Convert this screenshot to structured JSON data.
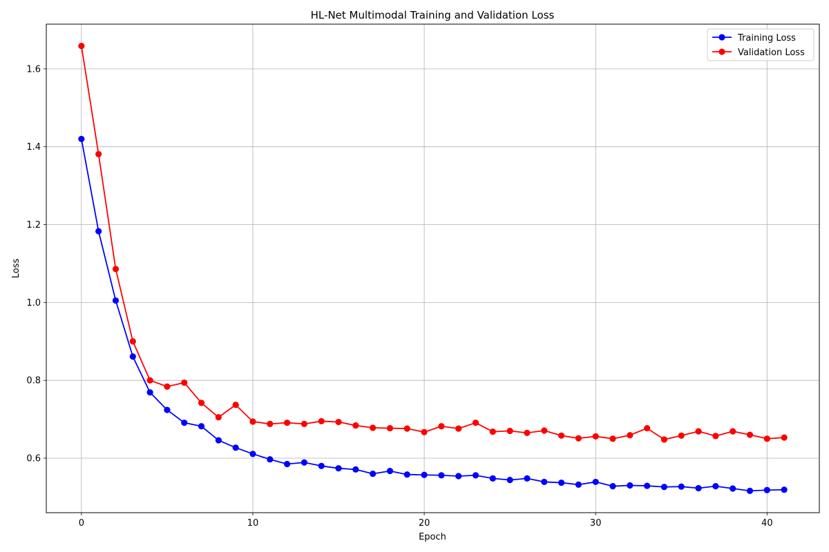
{
  "chart_data": {
    "type": "line",
    "title": "HL-Net Multimodal Training and Validation Loss",
    "xlabel": "Epoch",
    "ylabel": "Loss",
    "xlim": [
      -2.05,
      43.05
    ],
    "ylim": [
      0.46,
      1.715
    ],
    "xticks": [
      0,
      10,
      20,
      30,
      40
    ],
    "yticks": [
      0.6,
      0.8,
      1.0,
      1.2,
      1.4,
      1.6
    ],
    "ytick_labels": [
      "0.6",
      "0.8",
      "1.0",
      "1.2",
      "1.4",
      "1.6"
    ],
    "grid": true,
    "legend_position": "top-right",
    "x": [
      0,
      1,
      2,
      3,
      4,
      5,
      6,
      7,
      8,
      9,
      10,
      11,
      12,
      13,
      14,
      15,
      16,
      17,
      18,
      19,
      20,
      21,
      22,
      23,
      24,
      25,
      26,
      27,
      28,
      29,
      30,
      31,
      32,
      33,
      34,
      35,
      36,
      37,
      38,
      39,
      40,
      41
    ],
    "series": [
      {
        "name": "Training Loss",
        "color": "#0000ff",
        "values": [
          1.42,
          1.183,
          1.005,
          0.861,
          0.769,
          0.724,
          0.691,
          0.682,
          0.646,
          0.627,
          0.611,
          0.597,
          0.585,
          0.589,
          0.58,
          0.574,
          0.571,
          0.56,
          0.567,
          0.558,
          0.557,
          0.556,
          0.554,
          0.556,
          0.548,
          0.544,
          0.548,
          0.539,
          0.537,
          0.532,
          0.539,
          0.528,
          0.53,
          0.529,
          0.526,
          0.527,
          0.523,
          0.528,
          0.522,
          0.516,
          0.518,
          0.519
        ]
      },
      {
        "name": "Validation Loss",
        "color": "#ff0000",
        "values": [
          1.659,
          1.381,
          1.086,
          0.9,
          0.8,
          0.784,
          0.794,
          0.742,
          0.705,
          0.737,
          0.694,
          0.688,
          0.691,
          0.688,
          0.695,
          0.693,
          0.684,
          0.678,
          0.677,
          0.676,
          0.667,
          0.682,
          0.676,
          0.691,
          0.668,
          0.67,
          0.665,
          0.671,
          0.658,
          0.651,
          0.656,
          0.65,
          0.659,
          0.677,
          0.648,
          0.658,
          0.669,
          0.657,
          0.669,
          0.66,
          0.65,
          0.653
        ]
      }
    ]
  }
}
